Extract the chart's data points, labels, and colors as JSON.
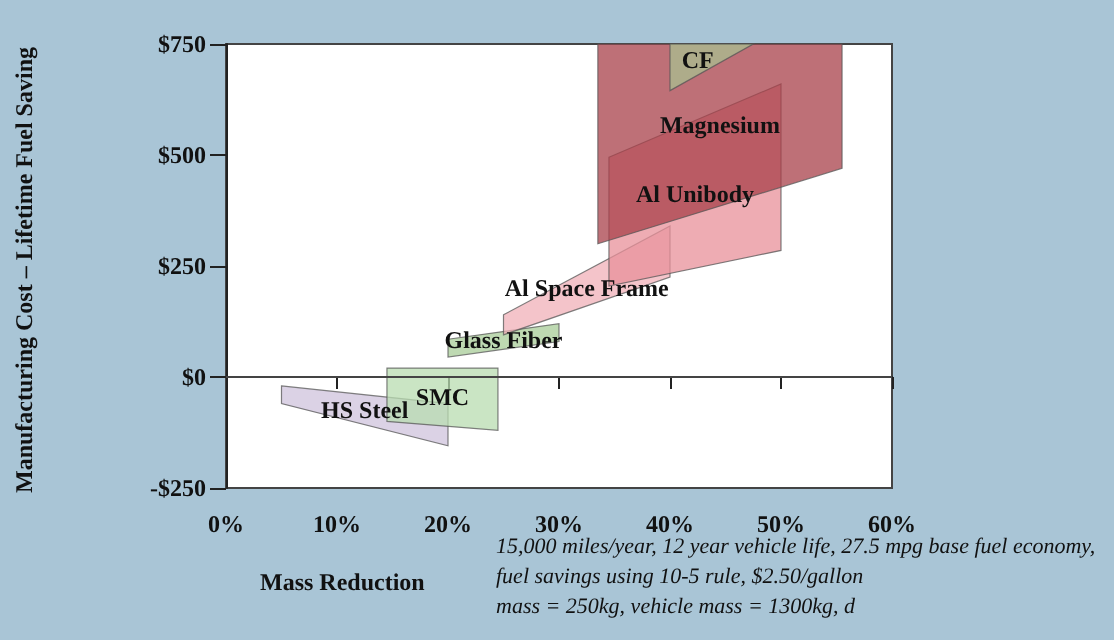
{
  "chart_data": {
    "type": "area",
    "xlabel": "Mass Reduction",
    "ylabel": "Manufacturing Cost – Lifetime Fuel Saving",
    "xlim": [
      0,
      60
    ],
    "ylim": [
      -250,
      750
    ],
    "xticks": [
      {
        "value": 0,
        "label": "0%"
      },
      {
        "value": 10,
        "label": "10%"
      },
      {
        "value": 20,
        "label": "20%"
      },
      {
        "value": 30,
        "label": "30%"
      },
      {
        "value": 40,
        "label": "40%"
      },
      {
        "value": 50,
        "label": "50%"
      },
      {
        "value": 60,
        "label": "60%"
      }
    ],
    "yticks": [
      {
        "value": -250,
        "label": "-$250"
      },
      {
        "value": 0,
        "label": "$0"
      },
      {
        "value": 250,
        "label": "$250"
      },
      {
        "value": 500,
        "label": "$500"
      },
      {
        "value": 750,
        "label": "$750"
      }
    ],
    "grid": false,
    "legend": false,
    "ref_lines": [
      {
        "axis": "y",
        "value": 0
      }
    ],
    "series": [
      {
        "name": "HS Steel",
        "color": "#cfc3dc",
        "x": [
          5,
          20,
          20,
          5
        ],
        "values": [
          -20,
          -60,
          -155,
          -60
        ]
      },
      {
        "name": "SMC",
        "color": "#b8dcb0",
        "x": [
          14.5,
          24.5,
          24.5,
          14.5
        ],
        "values": [
          20,
          20,
          -120,
          -100
        ]
      },
      {
        "name": "Glass Fiber",
        "color": "#a8cc98",
        "x": [
          20,
          30,
          30,
          20
        ],
        "values": [
          85,
          120,
          80,
          45
        ]
      },
      {
        "name": "Al Space Frame",
        "color": "#f0b0b8",
        "x": [
          25,
          40,
          40,
          25
        ],
        "values": [
          140,
          340,
          225,
          95
        ]
      },
      {
        "name": "Al Unibody",
        "color": "#e8909a",
        "x": [
          34.5,
          50,
          50,
          34.5
        ],
        "values": [
          495,
          660,
          285,
          205
        ]
      },
      {
        "name": "Magnesium",
        "color": "#a8404a",
        "x": [
          33.5,
          55.5,
          55.5,
          33.5
        ],
        "values": [
          750,
          750,
          470,
          300
        ]
      },
      {
        "name": "CF",
        "color": "#a8c090",
        "x": [
          40,
          47.5,
          40
        ],
        "values": [
          750,
          750,
          645
        ]
      }
    ],
    "annotations": [
      "15,000 miles/year, 12 year vehicle life, 27.5 mpg base fuel economy,",
      "fuel savings using 10-5 rule, $2.50/gallon",
      "mass = 250kg, vehicle mass = 1300kg, d"
    ]
  }
}
